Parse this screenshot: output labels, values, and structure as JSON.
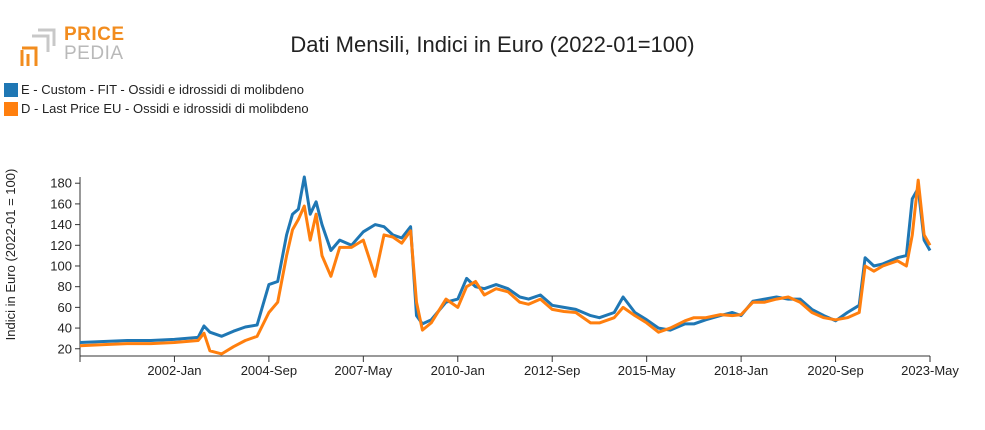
{
  "logo": {
    "word1": "PRICE",
    "word2": "PEDIA"
  },
  "chart_data": {
    "type": "line",
    "title": "Dati Mensili, Indici in Euro (2022-01=100)",
    "ylabel": "Indici in Euro (2022-01 = 100)",
    "xlabel": "",
    "ylim": [
      13,
      186
    ],
    "yticks": [
      20,
      40,
      60,
      80,
      100,
      120,
      140,
      160,
      180
    ],
    "xticks": [
      "2002-Jan",
      "2004-Sep",
      "2007-May",
      "2010-Jan",
      "2012-Sep",
      "2015-May",
      "2018-Jan",
      "2020-Sep",
      "2023-May"
    ],
    "x_start": "1999-May",
    "x_end": "2023-May",
    "legend_position": "top-left",
    "grid": false,
    "series": [
      {
        "name": "E - Custom - FIT - Ossidi e idrossidi di molibdeno",
        "color": "#1f77b4",
        "points": [
          [
            "1999-05",
            26
          ],
          [
            "2000-01",
            27
          ],
          [
            "2000-09",
            28
          ],
          [
            "2001-05",
            28
          ],
          [
            "2002-01",
            29
          ],
          [
            "2002-09",
            31
          ],
          [
            "2002-11",
            42
          ],
          [
            "2003-01",
            36
          ],
          [
            "2003-05",
            32
          ],
          [
            "2003-09",
            37
          ],
          [
            "2004-01",
            41
          ],
          [
            "2004-05",
            43
          ],
          [
            "2004-09",
            82
          ],
          [
            "2004-12",
            85
          ],
          [
            "2005-03",
            130
          ],
          [
            "2005-05",
            150
          ],
          [
            "2005-07",
            155
          ],
          [
            "2005-09",
            186
          ],
          [
            "2005-11",
            150
          ],
          [
            "2006-01",
            162
          ],
          [
            "2006-03",
            140
          ],
          [
            "2006-06",
            115
          ],
          [
            "2006-09",
            125
          ],
          [
            "2007-01",
            120
          ],
          [
            "2007-05",
            133
          ],
          [
            "2007-09",
            140
          ],
          [
            "2007-12",
            138
          ],
          [
            "2008-03",
            130
          ],
          [
            "2008-06",
            127
          ],
          [
            "2008-09",
            138
          ],
          [
            "2008-11",
            52
          ],
          [
            "2009-01",
            44
          ],
          [
            "2009-04",
            48
          ],
          [
            "2009-09",
            65
          ],
          [
            "2010-01",
            68
          ],
          [
            "2010-04",
            88
          ],
          [
            "2010-07",
            80
          ],
          [
            "2010-10",
            78
          ],
          [
            "2011-02",
            82
          ],
          [
            "2011-06",
            78
          ],
          [
            "2011-10",
            70
          ],
          [
            "2012-01",
            68
          ],
          [
            "2012-05",
            72
          ],
          [
            "2012-09",
            62
          ],
          [
            "2013-01",
            60
          ],
          [
            "2013-05",
            58
          ],
          [
            "2013-10",
            52
          ],
          [
            "2014-01",
            50
          ],
          [
            "2014-06",
            55
          ],
          [
            "2014-09",
            70
          ],
          [
            "2015-01",
            55
          ],
          [
            "2015-05",
            48
          ],
          [
            "2015-09",
            40
          ],
          [
            "2016-01",
            38
          ],
          [
            "2016-06",
            44
          ],
          [
            "2016-09",
            44
          ],
          [
            "2017-01",
            48
          ],
          [
            "2017-06",
            52
          ],
          [
            "2017-10",
            55
          ],
          [
            "2018-01",
            52
          ],
          [
            "2018-05",
            66
          ],
          [
            "2018-09",
            68
          ],
          [
            "2019-01",
            70
          ],
          [
            "2019-05",
            68
          ],
          [
            "2019-09",
            68
          ],
          [
            "2020-01",
            58
          ],
          [
            "2020-05",
            52
          ],
          [
            "2020-09",
            47
          ],
          [
            "2021-01",
            55
          ],
          [
            "2021-05",
            62
          ],
          [
            "2021-07",
            108
          ],
          [
            "2021-10",
            100
          ],
          [
            "2022-01",
            102
          ],
          [
            "2022-06",
            108
          ],
          [
            "2022-09",
            110
          ],
          [
            "2022-11",
            165
          ],
          [
            "2023-01",
            175
          ],
          [
            "2023-03",
            125
          ],
          [
            "2023-05",
            115
          ]
        ]
      },
      {
        "name": "D - Last Price EU - Ossidi e idrossidi di molibdeno",
        "color": "#ff7f0e",
        "points": [
          [
            "1999-05",
            23
          ],
          [
            "2000-01",
            24
          ],
          [
            "2000-09",
            25
          ],
          [
            "2001-05",
            25
          ],
          [
            "2002-01",
            26
          ],
          [
            "2002-09",
            28
          ],
          [
            "2002-11",
            35
          ],
          [
            "2003-01",
            18
          ],
          [
            "2003-05",
            15
          ],
          [
            "2003-09",
            22
          ],
          [
            "2004-01",
            28
          ],
          [
            "2004-05",
            32
          ],
          [
            "2004-09",
            55
          ],
          [
            "2004-12",
            65
          ],
          [
            "2005-03",
            110
          ],
          [
            "2005-05",
            135
          ],
          [
            "2005-07",
            145
          ],
          [
            "2005-09",
            158
          ],
          [
            "2005-11",
            125
          ],
          [
            "2006-01",
            150
          ],
          [
            "2006-03",
            110
          ],
          [
            "2006-06",
            90
          ],
          [
            "2006-09",
            118
          ],
          [
            "2007-01",
            118
          ],
          [
            "2007-05",
            125
          ],
          [
            "2007-09",
            90
          ],
          [
            "2007-12",
            130
          ],
          [
            "2008-03",
            128
          ],
          [
            "2008-06",
            122
          ],
          [
            "2008-09",
            134
          ],
          [
            "2008-11",
            65
          ],
          [
            "2009-01",
            38
          ],
          [
            "2009-04",
            45
          ],
          [
            "2009-09",
            68
          ],
          [
            "2010-01",
            60
          ],
          [
            "2010-04",
            80
          ],
          [
            "2010-07",
            85
          ],
          [
            "2010-10",
            72
          ],
          [
            "2011-02",
            78
          ],
          [
            "2011-06",
            75
          ],
          [
            "2011-10",
            65
          ],
          [
            "2012-01",
            63
          ],
          [
            "2012-05",
            68
          ],
          [
            "2012-09",
            58
          ],
          [
            "2013-01",
            56
          ],
          [
            "2013-05",
            55
          ],
          [
            "2013-10",
            45
          ],
          [
            "2014-01",
            45
          ],
          [
            "2014-06",
            50
          ],
          [
            "2014-09",
            60
          ],
          [
            "2015-01",
            52
          ],
          [
            "2015-05",
            45
          ],
          [
            "2015-09",
            36
          ],
          [
            "2016-01",
            40
          ],
          [
            "2016-06",
            47
          ],
          [
            "2016-09",
            50
          ],
          [
            "2017-01",
            50
          ],
          [
            "2017-06",
            53
          ],
          [
            "2017-10",
            52
          ],
          [
            "2018-01",
            53
          ],
          [
            "2018-05",
            65
          ],
          [
            "2018-09",
            65
          ],
          [
            "2019-01",
            68
          ],
          [
            "2019-05",
            70
          ],
          [
            "2019-09",
            65
          ],
          [
            "2020-01",
            55
          ],
          [
            "2020-05",
            50
          ],
          [
            "2020-09",
            48
          ],
          [
            "2021-01",
            50
          ],
          [
            "2021-05",
            55
          ],
          [
            "2021-07",
            100
          ],
          [
            "2021-10",
            95
          ],
          [
            "2022-01",
            100
          ],
          [
            "2022-06",
            105
          ],
          [
            "2022-09",
            100
          ],
          [
            "2022-11",
            130
          ],
          [
            "2023-01",
            183
          ],
          [
            "2023-03",
            130
          ],
          [
            "2023-05",
            120
          ]
        ]
      }
    ]
  }
}
